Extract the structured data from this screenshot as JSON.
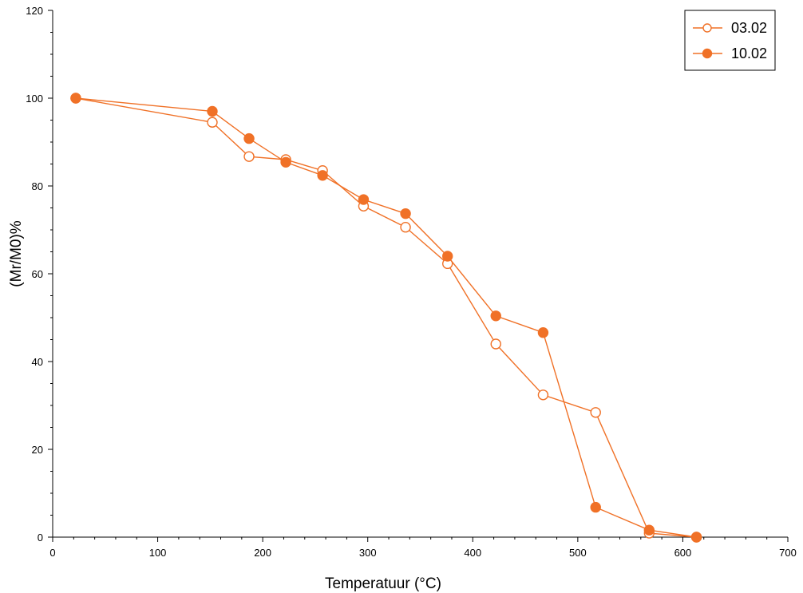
{
  "chart_data": {
    "type": "line",
    "xlabel": "Temperatuur (°C)",
    "ylabel": "(Mr/M0)%",
    "xlim": [
      0,
      700
    ],
    "ylim": [
      0,
      120
    ],
    "x_ticks": [
      0,
      100,
      200,
      300,
      400,
      500,
      600,
      700
    ],
    "x_tick_labels": [
      "0",
      "100",
      "200",
      "300",
      "400",
      "500",
      "600",
      "700"
    ],
    "y_ticks": [
      0,
      20,
      40,
      60,
      80,
      100,
      120
    ],
    "y_tick_labels": [
      "0",
      "20",
      "40",
      "60",
      "80",
      "100",
      "120"
    ],
    "grid": false,
    "legend_position": "top-right",
    "series": [
      {
        "name": "03.02",
        "color": "#f07127",
        "marker": "open-circle",
        "x": [
          22,
          152,
          187,
          222,
          257,
          296,
          336,
          376,
          422,
          467,
          517,
          568,
          613
        ],
        "y": [
          100,
          94.5,
          86.7,
          86,
          83.5,
          75.4,
          70.6,
          62.3,
          44,
          32.4,
          28.4,
          0.9,
          0
        ]
      },
      {
        "name": "10.02",
        "color": "#f07127",
        "marker": "filled-circle",
        "x": [
          22,
          152,
          187,
          222,
          257,
          296,
          336,
          376,
          422,
          467,
          517,
          568,
          613
        ],
        "y": [
          100,
          97,
          90.8,
          85.4,
          82.4,
          76.9,
          73.7,
          64,
          50.4,
          46.6,
          6.8,
          1.6,
          0
        ]
      }
    ]
  }
}
